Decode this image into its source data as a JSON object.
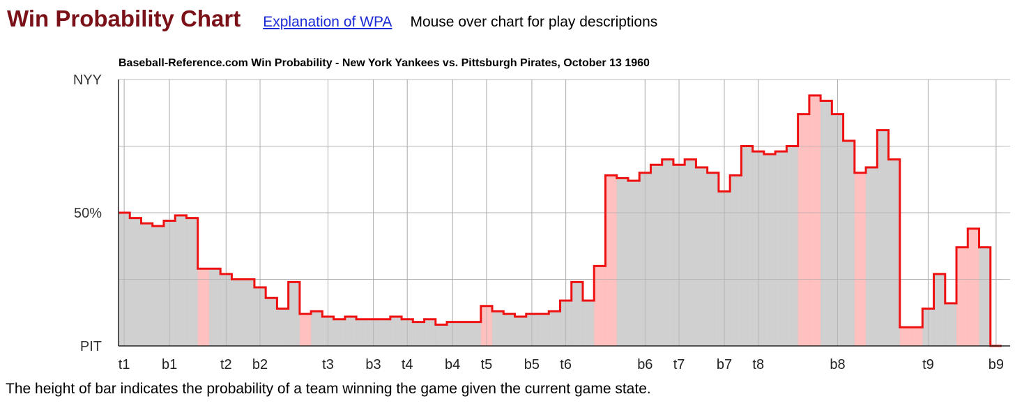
{
  "header": {
    "title": "Win Probability Chart",
    "link_label": "Explanation of WPA",
    "hint": "Mouse over chart for play descriptions"
  },
  "caption": "The height of bar indicates the probability of a team winning the game given the current game state.",
  "chart_data": {
    "type": "area",
    "title": "Baseball-Reference.com Win Probability - New York Yankees vs. Pittsburgh Pirates, October 13 1960",
    "y_tick_labels": [
      "NYY",
      "50%",
      "PIT"
    ],
    "y_tick_values": [
      100,
      50,
      0
    ],
    "ylim": [
      0,
      100
    ],
    "grid": true,
    "x_tick_labels": [
      "t1",
      "b1",
      "t2",
      "b2",
      "t3",
      "b3",
      "t4",
      "b4",
      "t5",
      "b5",
      "t6",
      "b6",
      "t7",
      "b7",
      "t8",
      "b8",
      "t9",
      "b9"
    ],
    "x_tick_play_index": [
      0,
      4,
      9,
      12,
      18,
      22,
      25,
      29,
      32,
      36,
      39,
      46,
      49,
      53,
      56,
      63,
      71,
      77
    ],
    "play_count": 78,
    "yankees_win_probability_pct": [
      50,
      48,
      46,
      45,
      47,
      49,
      48,
      29,
      29,
      27,
      25,
      25,
      22,
      18,
      14,
      24,
      12,
      13,
      11,
      10,
      11,
      10,
      10,
      10,
      11,
      10,
      9,
      10,
      8,
      9,
      9,
      9,
      15,
      13,
      12,
      11,
      12,
      12,
      13,
      17,
      24,
      17,
      30,
      64,
      63,
      62,
      65,
      68,
      70,
      68,
      70,
      67,
      65,
      58,
      64,
      75,
      73,
      72,
      73,
      75,
      87,
      94,
      92,
      87,
      77,
      65,
      67,
      81,
      70,
      7,
      7,
      14,
      27,
      16,
      37,
      44,
      37,
      0
    ],
    "play_shading": [
      "none",
      "none",
      "none",
      "none",
      "none",
      "none",
      "none",
      "pink",
      "none",
      "none",
      "none",
      "none",
      "none",
      "none",
      "none",
      "none",
      "pink",
      "none",
      "none",
      "none",
      "none",
      "none",
      "none",
      "none",
      "none",
      "none",
      "none",
      "none",
      "none",
      "none",
      "none",
      "none",
      "pink",
      "none",
      "none",
      "none",
      "none",
      "none",
      "none",
      "none",
      "none",
      "none",
      "pink",
      "pink",
      "none",
      "none",
      "none",
      "none",
      "none",
      "none",
      "none",
      "none",
      "none",
      "none",
      "none",
      "none",
      "none",
      "none",
      "none",
      "none",
      "pink",
      "pink",
      "none",
      "none",
      "none",
      "pink",
      "none",
      "none",
      "none",
      "pink",
      "pink",
      "none",
      "none",
      "none",
      "pink",
      "pink",
      "none",
      "none"
    ],
    "colors": {
      "line": "#ee1111",
      "fill": "#cccccc",
      "highlight": "#ffbbbb",
      "grid": "#bbbbbb",
      "title": "#7a1018",
      "link": "#1a2ad6"
    }
  }
}
